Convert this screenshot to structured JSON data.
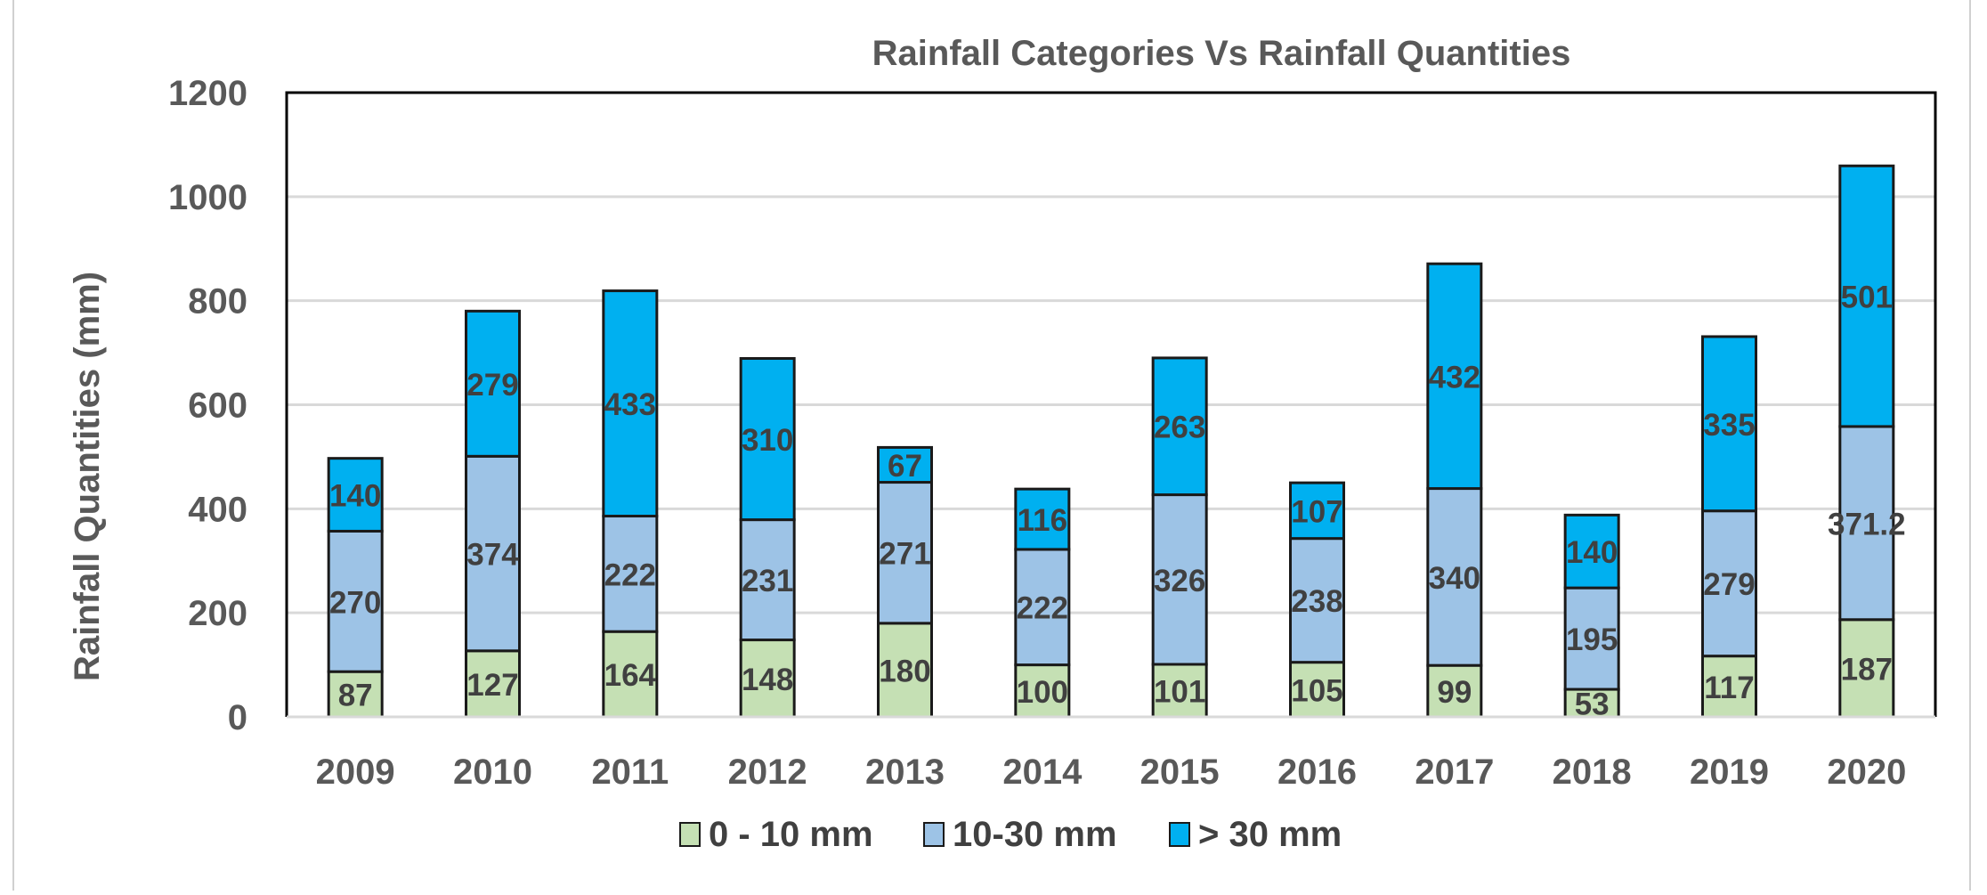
{
  "chart_data": {
    "type": "bar",
    "stacked": true,
    "title": "Rainfall Categories Vs Rainfall Quantities",
    "xlabel": "",
    "ylabel": "Rainfall Quantities (mm)",
    "ylim": [
      0,
      1200
    ],
    "yticks": [
      "0",
      "200",
      "400",
      "600",
      "800",
      "1000",
      "1200"
    ],
    "grid": true,
    "legend_position": "bottom",
    "categories": [
      "2009",
      "2010",
      "2011",
      "2012",
      "2013",
      "2014",
      "2015",
      "2016",
      "2017",
      "2018",
      "2019",
      "2020"
    ],
    "series": [
      {
        "name": "0 - 10 mm",
        "color": "#c5e0b4",
        "values": [
          87,
          127,
          164,
          148,
          180,
          100,
          101,
          105,
          99,
          53,
          117,
          187
        ],
        "labels": [
          "87",
          "127",
          "164",
          "148",
          "180",
          "100",
          "101",
          "105",
          "99",
          "53",
          "117",
          "187"
        ]
      },
      {
        "name": "10-30 mm",
        "color": "#9dc3e6",
        "values": [
          270,
          374,
          222,
          231,
          271,
          222,
          326,
          238,
          340,
          195,
          279,
          371.2
        ],
        "labels": [
          "270",
          "374",
          "222",
          "231",
          "271",
          "222",
          "326",
          "238",
          "340",
          "195",
          "279",
          "371.2"
        ]
      },
      {
        "name": "> 30 mm",
        "color": "#00b0f0",
        "values": [
          140,
          279,
          433,
          310,
          67,
          116,
          263,
          107,
          432,
          140,
          335,
          501
        ],
        "labels": [
          "140",
          "279",
          "433",
          "310",
          "67",
          "116",
          "263",
          "107",
          "432",
          "140",
          "335",
          "501"
        ]
      }
    ]
  }
}
